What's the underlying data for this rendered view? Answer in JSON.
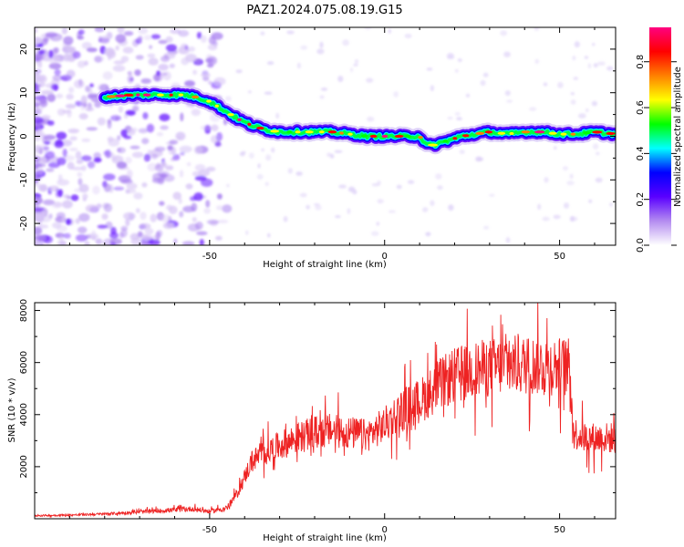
{
  "chart_data": [
    {
      "type": "heatmap",
      "title": "PAZ1.2024.075.08.19.G15",
      "xlabel": "Height of straight line (km)",
      "ylabel": "Frequency (Hz)",
      "xlim": [
        -100,
        66
      ],
      "ylim": [
        -25,
        25
      ],
      "xticks": [
        -50,
        0,
        50
      ],
      "yticks": [
        -20,
        -10,
        0,
        10,
        20
      ],
      "grid": false,
      "colorbar": {
        "label": "Normalized spectral amplitude",
        "range": [
          0.0,
          0.95
        ],
        "ticks": [
          0.0,
          0.2,
          0.4,
          0.6,
          0.8
        ],
        "colormap": [
          "#ffffff",
          "#b48cf0",
          "#5a00ff",
          "#0000ff",
          "#00ffff",
          "#00ff00",
          "#ffff00",
          "#ff8000",
          "#ff0000",
          "#ff0080"
        ]
      },
      "ridge": {
        "name": "dominant frequency",
        "x": [
          -80,
          -72,
          -64,
          -57,
          -54,
          -50,
          -46,
          -42,
          -38,
          -34,
          -30,
          -25,
          -20,
          -15,
          -10,
          -5,
          0,
          5,
          10,
          12,
          14,
          18,
          22,
          26,
          30,
          35,
          40,
          45,
          50,
          55,
          60,
          66
        ],
        "y": [
          9,
          9.5,
          9.5,
          9.5,
          9,
          8,
          6,
          4,
          2.5,
          1.5,
          1,
          1,
          1,
          1,
          0.5,
          0,
          0,
          0,
          0,
          -2,
          -2,
          -1,
          0,
          0.5,
          1,
          0.5,
          1,
          1,
          0.5,
          0.5,
          1,
          0.5
        ]
      }
    },
    {
      "type": "line",
      "xlabel": "Height of straight line (km)",
      "ylabel": "SNR (10 * v/v)",
      "xlim": [
        -100,
        66
      ],
      "ylim": [
        0,
        8300
      ],
      "xticks": [
        -50,
        0,
        50
      ],
      "yticks": [
        2000,
        4000,
        6000,
        8000
      ],
      "grid": false,
      "series": [
        {
          "color": "#ee2222",
          "x": [
            -100,
            -90,
            -80,
            -70,
            -60,
            -55,
            -50,
            -45,
            -42,
            -40,
            -38,
            -35,
            -30,
            -25,
            -20,
            -15,
            -10,
            -5,
            0,
            5,
            10,
            15,
            20,
            25,
            30,
            35,
            40,
            45,
            50,
            53,
            54,
            58,
            62,
            66
          ],
          "y": [
            120,
            140,
            180,
            260,
            340,
            380,
            280,
            420,
            1000,
            1600,
            2200,
            2500,
            2800,
            3100,
            3300,
            3400,
            3300,
            3200,
            3600,
            4200,
            4500,
            5100,
            5500,
            5700,
            5800,
            5900,
            5900,
            5900,
            5850,
            5800,
            3300,
            3100,
            3100,
            3100
          ]
        }
      ]
    }
  ]
}
